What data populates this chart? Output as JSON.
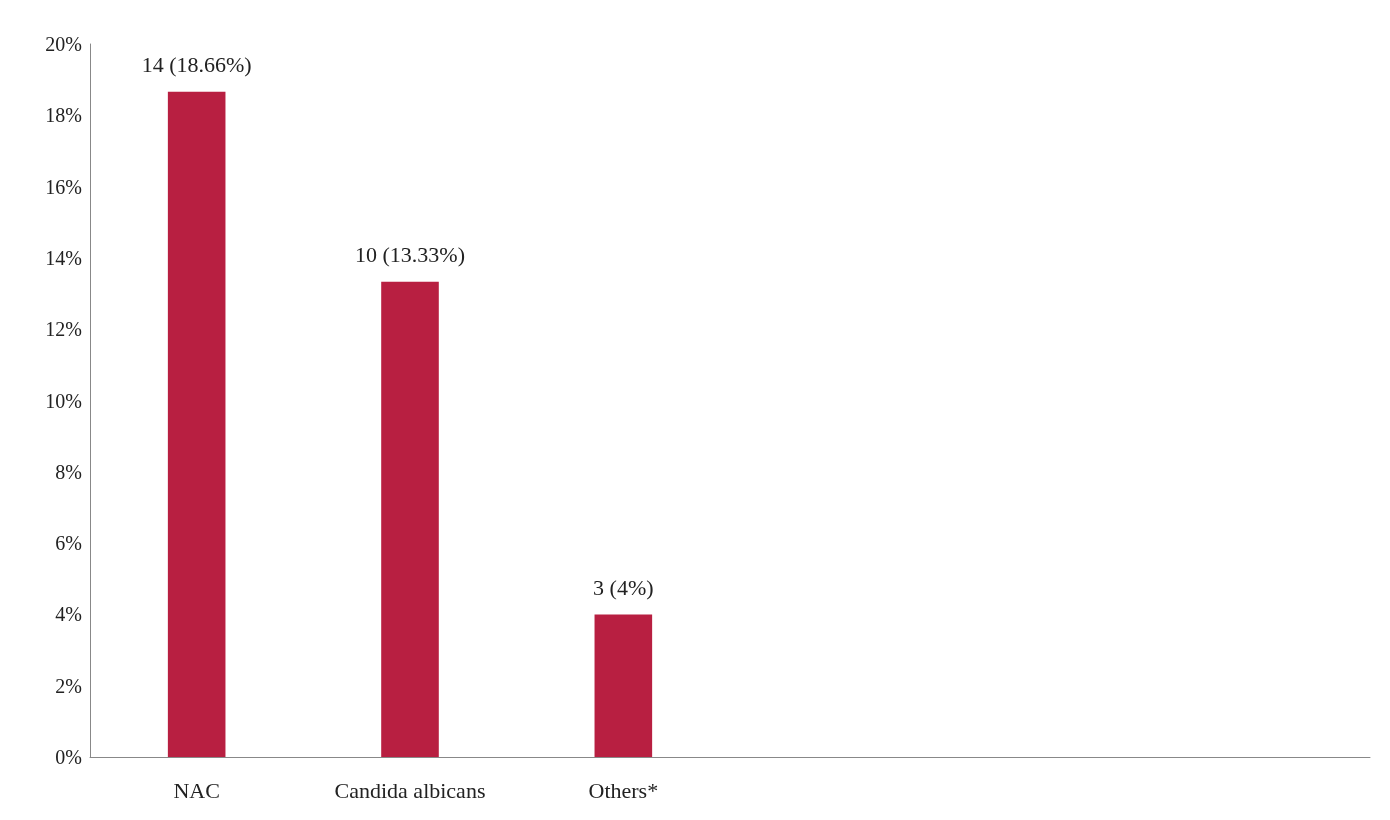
{
  "chart_data": {
    "type": "bar",
    "categories": [
      "NAC",
      "Candida albicans",
      "Others*",
      null,
      null,
      null
    ],
    "values": [
      18.66,
      13.33,
      4,
      null,
      null,
      null
    ],
    "value_labels": [
      "14 (18.66%)",
      "10 (13.33%)",
      "3 (4%)",
      null,
      null,
      null
    ],
    "color": "#b81f41",
    "ylim": [
      0,
      20
    ],
    "yticks": [
      {
        "value": 0,
        "label": "0%"
      },
      {
        "value": 2,
        "label": "2%"
      },
      {
        "value": 4,
        "label": "4%"
      },
      {
        "value": 6,
        "label": "6%"
      },
      {
        "value": 8,
        "label": "8%"
      },
      {
        "value": 10,
        "label": "10%"
      },
      {
        "value": 12,
        "label": "12%"
      },
      {
        "value": 14,
        "label": "14%"
      },
      {
        "value": 16,
        "label": "16%"
      },
      {
        "value": 18,
        "label": "18%"
      },
      {
        "value": 20,
        "label": "20%"
      }
    ],
    "grid": false
  }
}
